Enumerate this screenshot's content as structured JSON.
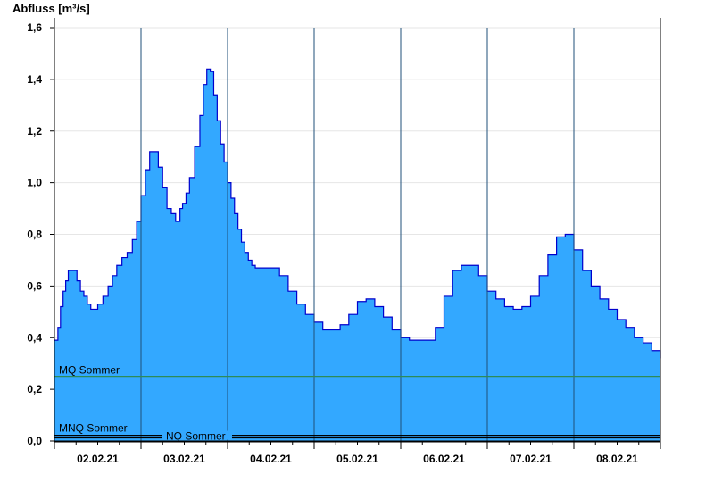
{
  "chart_data": {
    "type": "area",
    "ylabel": "Abfluss [m³/s]",
    "ylim": [
      0,
      1.6
    ],
    "yticks": [
      "0,0",
      "0,2",
      "0,4",
      "0,6",
      "0,8",
      "1,0",
      "1,2",
      "1,4",
      "1,6"
    ],
    "xlim": [
      0,
      7
    ],
    "xticks": [
      "02.02.21",
      "03.02.21",
      "04.02.21",
      "05.02.21",
      "06.02.21",
      "07.02.21",
      "08.02.21"
    ],
    "grid": true,
    "colors": {
      "fill": "#33a8ff",
      "line": "#0000cc",
      "mq": "#2e8b57",
      "mnq": "#000000",
      "nq": "#000000"
    },
    "series": [
      {
        "x": [
          0.0,
          0.04,
          0.07,
          0.1,
          0.13,
          0.16,
          0.2,
          0.26,
          0.3,
          0.34,
          0.38,
          0.42,
          0.46,
          0.5,
          0.56,
          0.62,
          0.67,
          0.72,
          0.78,
          0.84,
          0.9,
          0.95,
          1.0,
          1.05,
          1.1,
          1.15,
          1.2,
          1.25,
          1.3,
          1.35,
          1.4,
          1.45,
          1.48,
          1.52,
          1.56,
          1.62,
          1.68,
          1.72,
          1.76,
          1.8,
          1.84,
          1.88,
          1.92,
          1.96,
          2.0,
          2.04,
          2.08,
          2.12,
          2.16,
          2.2,
          2.24,
          2.28,
          2.32,
          2.38,
          2.44,
          2.5,
          2.6,
          2.7,
          2.8,
          2.9,
          3.0,
          3.1,
          3.2,
          3.3,
          3.4,
          3.5,
          3.6,
          3.7,
          3.8,
          3.9,
          4.0,
          4.1,
          4.2,
          4.3,
          4.4,
          4.5,
          4.6,
          4.7,
          4.8,
          4.9,
          5.0,
          5.1,
          5.2,
          5.3,
          5.4,
          5.5,
          5.6,
          5.7,
          5.8,
          5.9,
          6.0,
          6.1,
          6.2,
          6.3,
          6.4,
          6.5,
          6.6,
          6.7,
          6.8,
          6.9,
          7.0
        ],
        "y": [
          0.39,
          0.44,
          0.52,
          0.58,
          0.62,
          0.66,
          0.66,
          0.62,
          0.58,
          0.56,
          0.53,
          0.51,
          0.51,
          0.53,
          0.56,
          0.6,
          0.64,
          0.68,
          0.71,
          0.73,
          0.78,
          0.85,
          0.95,
          1.05,
          1.12,
          1.12,
          1.06,
          0.98,
          0.9,
          0.88,
          0.85,
          0.9,
          0.92,
          0.96,
          1.02,
          1.14,
          1.26,
          1.38,
          1.44,
          1.43,
          1.34,
          1.24,
          1.15,
          1.08,
          1.0,
          0.94,
          0.88,
          0.82,
          0.77,
          0.73,
          0.7,
          0.68,
          0.67,
          0.67,
          0.67,
          0.67,
          0.64,
          0.58,
          0.53,
          0.49,
          0.46,
          0.43,
          0.43,
          0.45,
          0.49,
          0.54,
          0.55,
          0.52,
          0.48,
          0.43,
          0.4,
          0.39,
          0.39,
          0.39,
          0.44,
          0.56,
          0.66,
          0.68,
          0.68,
          0.64,
          0.58,
          0.55,
          0.52,
          0.51,
          0.52,
          0.56,
          0.64,
          0.72,
          0.79,
          0.8,
          0.74,
          0.66,
          0.6,
          0.55,
          0.51,
          0.47,
          0.44,
          0.4,
          0.38,
          0.35,
          0.32
        ]
      }
    ],
    "ref_lines": [
      {
        "label": "MQ Sommer",
        "y": 0.25
      },
      {
        "label": "MNQ Sommer",
        "y": 0.022
      },
      {
        "label": "NQ Sommer",
        "y": 0.012
      }
    ]
  }
}
